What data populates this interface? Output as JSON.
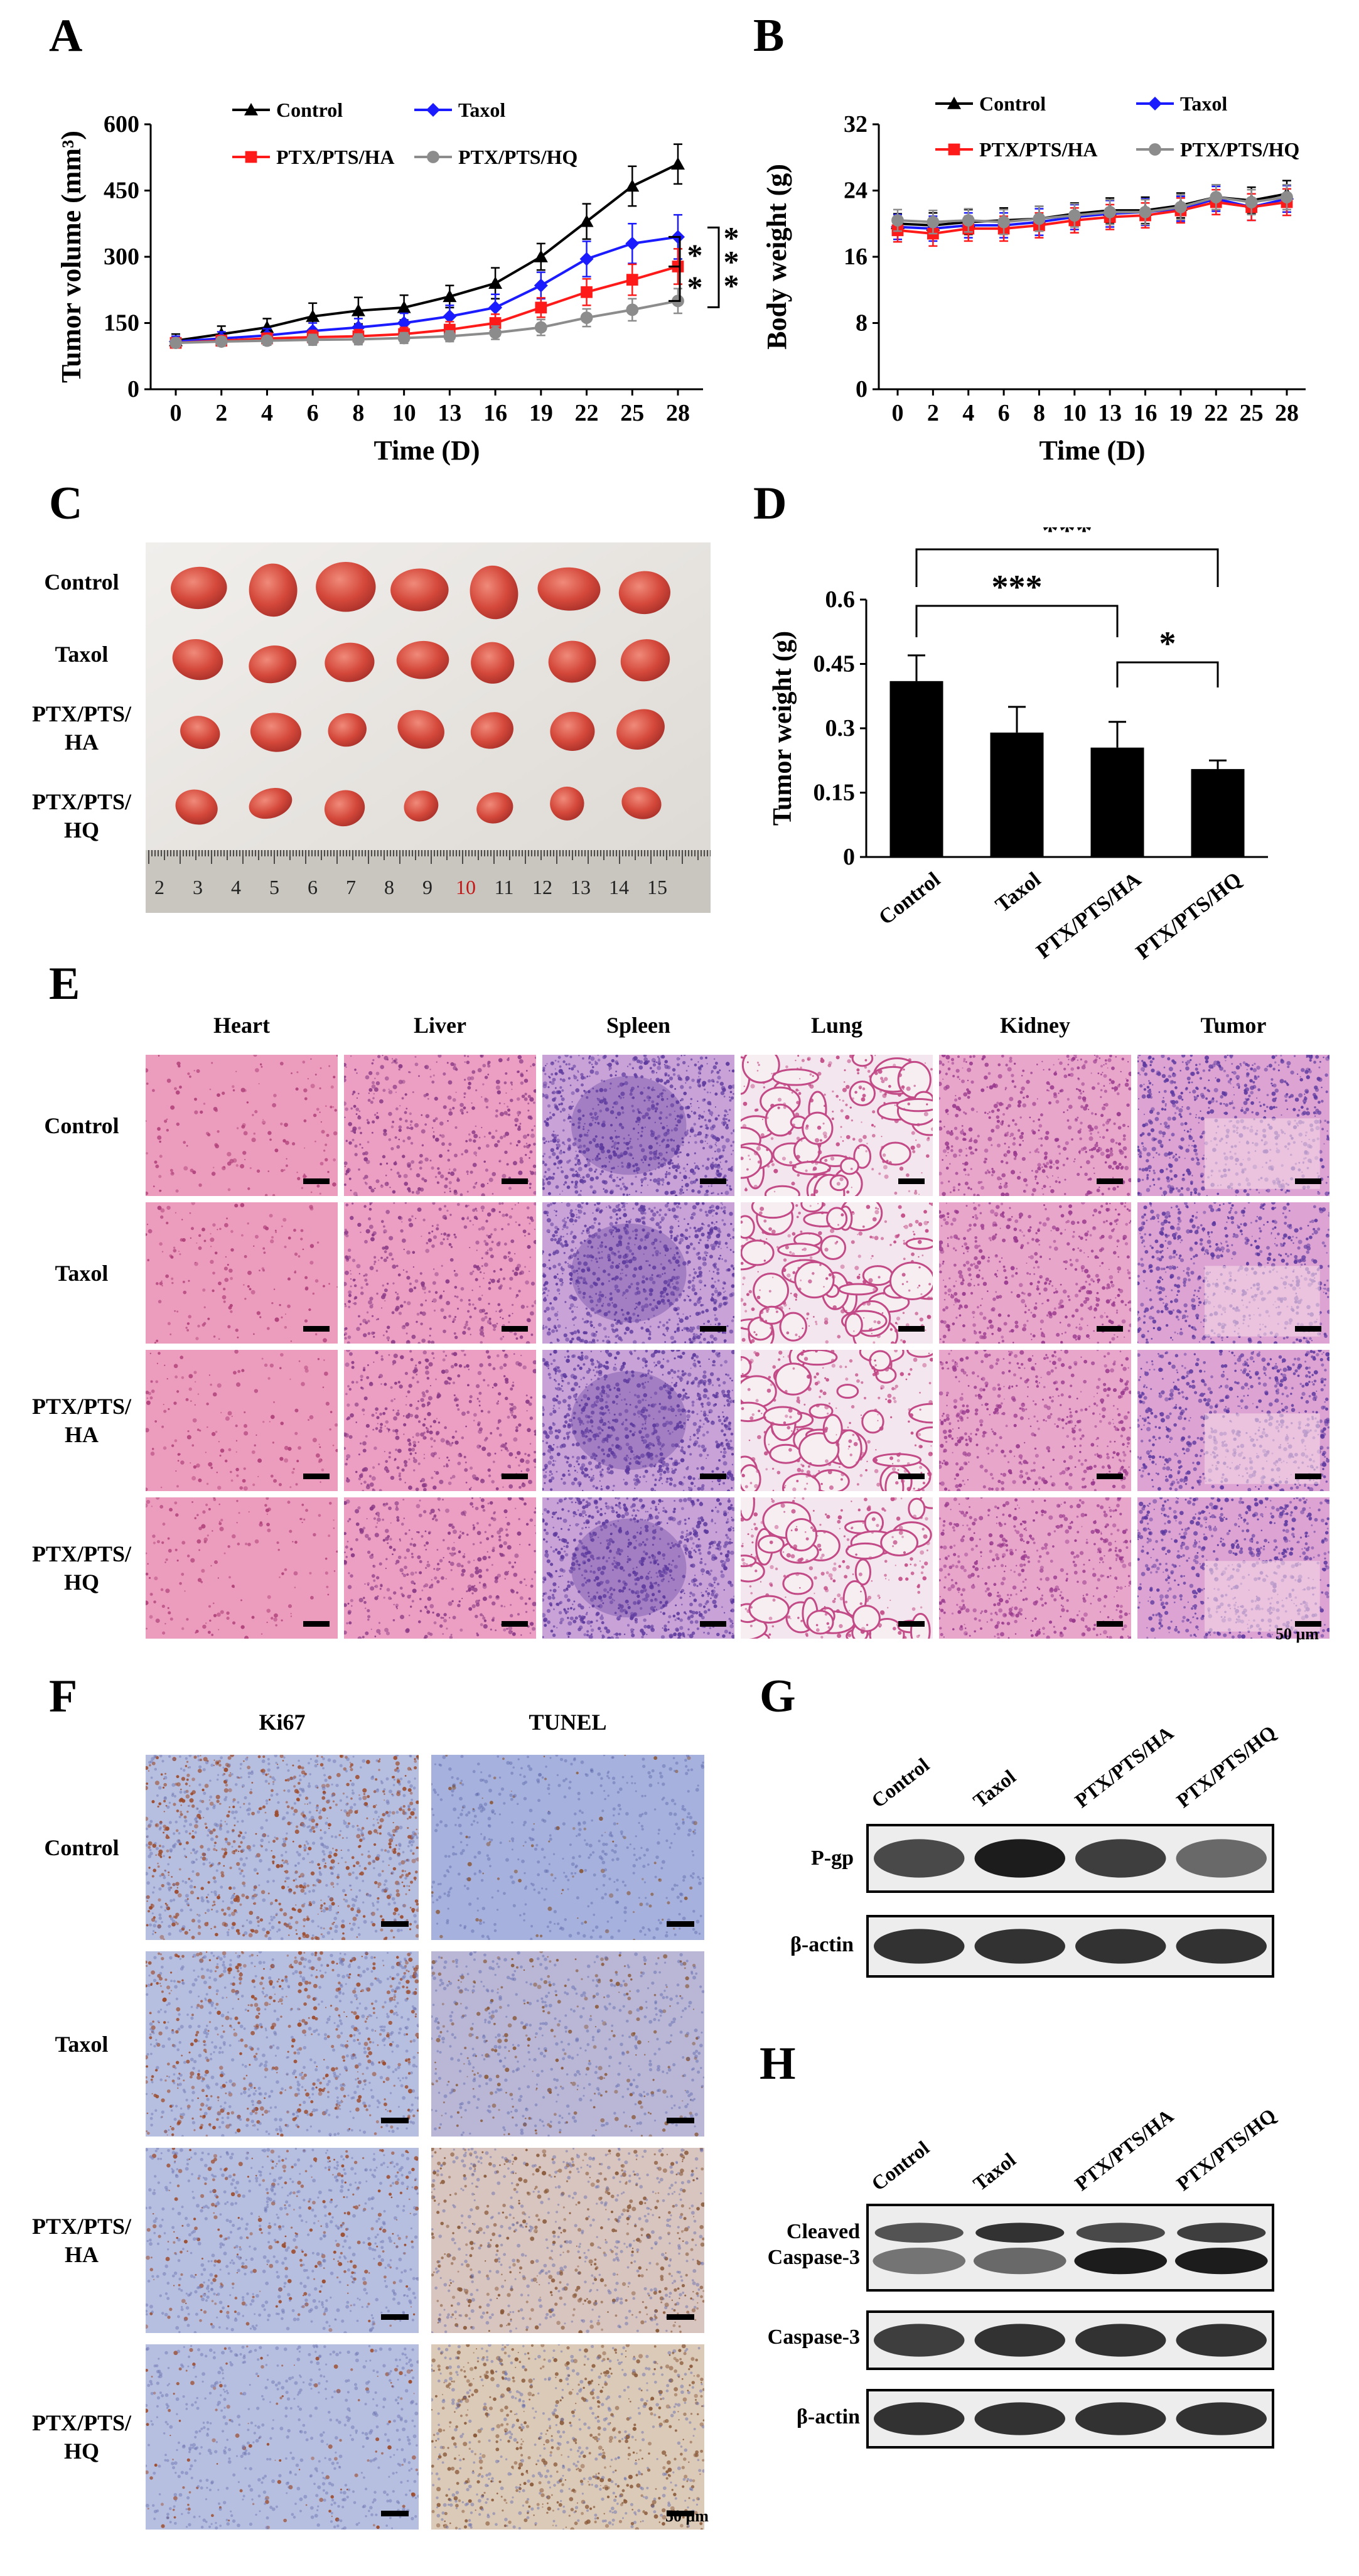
{
  "panels": {
    "a": "A",
    "b": "B",
    "c": "C",
    "d": "D",
    "e": "E",
    "f": "F",
    "g": "G",
    "h": "H"
  },
  "groups": [
    "Control",
    "Taxol",
    "PTX/PTS/HA",
    "PTX/PTS/HQ"
  ],
  "group_labels_two_line": [
    [
      "Control",
      ""
    ],
    [
      "Taxol",
      ""
    ],
    [
      "PTX/PTS/",
      "HA"
    ],
    [
      "PTX/PTS/",
      "HQ"
    ]
  ],
  "colors": {
    "control": "#000000",
    "taxol": "#1b1bff",
    "ha": "#ff1a1a",
    "hq": "#8c8c8c",
    "tissue_he": "#e9a3c4",
    "stain_dab": "#9c4a2a",
    "hematox": "#8f96c9"
  },
  "significance": {
    "a_upper": "*",
    "a_lower": "*",
    "a_outer": "***",
    "d_control_ha": "***",
    "d_control_hq": "***",
    "d_ha_hq": "*"
  },
  "ruler": {
    "numbers": [
      "2",
      "3",
      "4",
      "5",
      "6",
      "7",
      "8",
      "9",
      "10",
      "11",
      "12",
      "13",
      "14",
      "15"
    ]
  },
  "panel_e": {
    "columns": [
      "Heart",
      "Liver",
      "Spleen",
      "Lung",
      "Kidney",
      "Tumor"
    ],
    "scale_label": "50 μm"
  },
  "panel_f": {
    "columns": [
      "Ki67",
      "TUNEL"
    ],
    "scale_label": "50 μm"
  },
  "panel_g": {
    "lanes": [
      "Control",
      "Taxol",
      "PTX/PTS/HA",
      "PTX/PTS/HQ"
    ],
    "rows": [
      "P-gp",
      "β-actin"
    ]
  },
  "panel_h": {
    "lanes": [
      "Control",
      "Taxol",
      "PTX/PTS/HA",
      "PTX/PTS/HQ"
    ],
    "rows": [
      "Cleaved Caspase-3",
      "Caspase-3",
      "β-actin"
    ]
  },
  "chart_data": [
    {
      "id": "A",
      "type": "line",
      "xlabel": "Time (D)",
      "ylabel": "Tumor volume (mm³)",
      "x": [
        0,
        2,
        4,
        6,
        8,
        10,
        13,
        16,
        19,
        22,
        25,
        28
      ],
      "ylim": [
        0,
        600
      ],
      "yticks": [
        0,
        150,
        300,
        450,
        600
      ],
      "legend": "top",
      "series": [
        {
          "name": "Control",
          "marker": "triangle",
          "color": "#000000",
          "values": [
            110,
            125,
            140,
            165,
            178,
            185,
            210,
            240,
            300,
            380,
            460,
            510
          ],
          "err": [
            15,
            18,
            20,
            30,
            30,
            28,
            25,
            35,
            30,
            40,
            45,
            45
          ]
        },
        {
          "name": "Taxol",
          "marker": "diamond",
          "color": "#1b1bff",
          "values": [
            108,
            115,
            122,
            132,
            140,
            150,
            165,
            185,
            235,
            295,
            330,
            345
          ],
          "err": [
            12,
            15,
            15,
            18,
            20,
            22,
            25,
            30,
            30,
            40,
            45,
            50
          ]
        },
        {
          "name": "PTX/PTS/HA",
          "marker": "square",
          "color": "#ff1a1a",
          "values": [
            105,
            110,
            115,
            118,
            120,
            125,
            135,
            150,
            185,
            220,
            248,
            278
          ],
          "err": [
            10,
            12,
            12,
            15,
            15,
            15,
            18,
            20,
            22,
            30,
            35,
            40
          ]
        },
        {
          "name": "PTX/PTS/HQ",
          "marker": "circle",
          "color": "#8c8c8c",
          "values": [
            105,
            108,
            110,
            112,
            113,
            116,
            120,
            128,
            140,
            162,
            180,
            200
          ],
          "err": [
            10,
            10,
            10,
            12,
            12,
            12,
            12,
            15,
            18,
            20,
            25,
            28
          ]
        }
      ]
    },
    {
      "id": "B",
      "type": "line",
      "xlabel": "Time (D)",
      "ylabel": "Body weight (g)",
      "x": [
        0,
        2,
        4,
        6,
        8,
        10,
        13,
        16,
        19,
        22,
        25,
        28
      ],
      "ylim": [
        0,
        32
      ],
      "yticks": [
        0,
        8,
        16,
        24,
        32
      ],
      "legend": "top",
      "series": [
        {
          "name": "Control",
          "marker": "triangle",
          "color": "#000000",
          "values": [
            20,
            19.8,
            20.2,
            20.4,
            20.6,
            21.2,
            21.6,
            21.6,
            22.2,
            23.2,
            22.8,
            23.6
          ],
          "err": [
            1.2,
            1.5,
            1.5,
            1.5,
            1.5,
            1.3,
            1.5,
            1.6,
            1.5,
            1.5,
            1.6,
            1.6
          ]
        },
        {
          "name": "Taxol",
          "marker": "diamond",
          "color": "#1b1bff",
          "values": [
            19.6,
            19.4,
            19.8,
            19.8,
            20.2,
            20.8,
            21.2,
            21.4,
            21.8,
            23.0,
            22.0,
            23.0
          ],
          "err": [
            1.5,
            1.5,
            1.5,
            1.5,
            1.6,
            1.5,
            1.6,
            1.6,
            1.5,
            1.5,
            1.6,
            1.6
          ]
        },
        {
          "name": "PTX/PTS/HA",
          "marker": "square",
          "color": "#ff1a1a",
          "values": [
            19.2,
            18.8,
            19.4,
            19.4,
            19.8,
            20.4,
            20.8,
            21.0,
            21.6,
            22.6,
            22.0,
            22.6
          ],
          "err": [
            1.4,
            1.5,
            1.5,
            1.5,
            1.5,
            1.5,
            1.5,
            1.5,
            1.5,
            1.5,
            1.6,
            1.6
          ]
        },
        {
          "name": "PTX/PTS/HQ",
          "marker": "circle",
          "color": "#8c8c8c",
          "values": [
            20.4,
            20.2,
            20.4,
            20.2,
            20.6,
            21.0,
            21.4,
            21.4,
            22.0,
            23.2,
            22.6,
            23.2
          ],
          "err": [
            1.3,
            1.4,
            1.4,
            1.5,
            1.5,
            1.4,
            1.5,
            1.5,
            1.5,
            1.5,
            1.5,
            1.5
          ]
        }
      ]
    },
    {
      "id": "D",
      "type": "bar",
      "ylabel": "Tumor weight (g)",
      "categories": [
        "Control",
        "Taxol",
        "PTX/PTS/HA",
        "PTX/PTS/HQ"
      ],
      "values": [
        0.41,
        0.29,
        0.255,
        0.205
      ],
      "err": [
        0.06,
        0.06,
        0.06,
        0.02
      ],
      "ylim": [
        0,
        0.6
      ],
      "yticks": [
        "0",
        "0.15",
        "0.3",
        "0.45",
        "0.6"
      ]
    }
  ]
}
